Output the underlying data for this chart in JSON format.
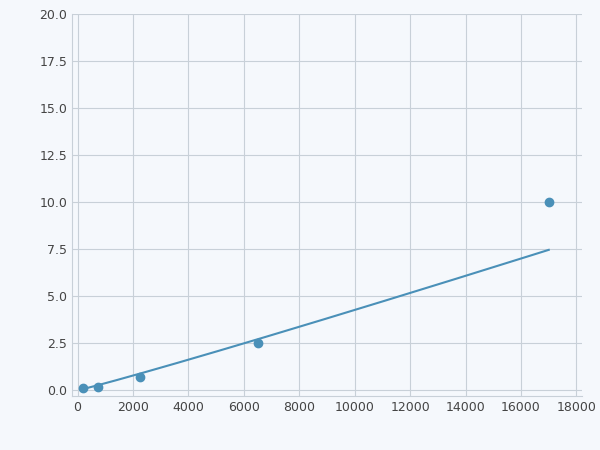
{
  "x_data": [
    200,
    750,
    2250,
    6500,
    17000
  ],
  "y_data": [
    0.1,
    0.2,
    0.7,
    2.5,
    10.0
  ],
  "line_color": "#4a90b8",
  "marker_color": "#4a90b8",
  "marker_size": 6,
  "xlim": [
    -200,
    18200
  ],
  "ylim": [
    -0.3,
    20.0
  ],
  "xticks": [
    0,
    2000,
    4000,
    6000,
    8000,
    10000,
    12000,
    14000,
    16000,
    18000
  ],
  "yticks": [
    0.0,
    2.5,
    5.0,
    7.5,
    10.0,
    12.5,
    15.0,
    17.5,
    20.0
  ],
  "grid_color": "#c8d0d8",
  "background_color": "#f5f8fc",
  "figsize": [
    6.0,
    4.5
  ],
  "dpi": 100
}
